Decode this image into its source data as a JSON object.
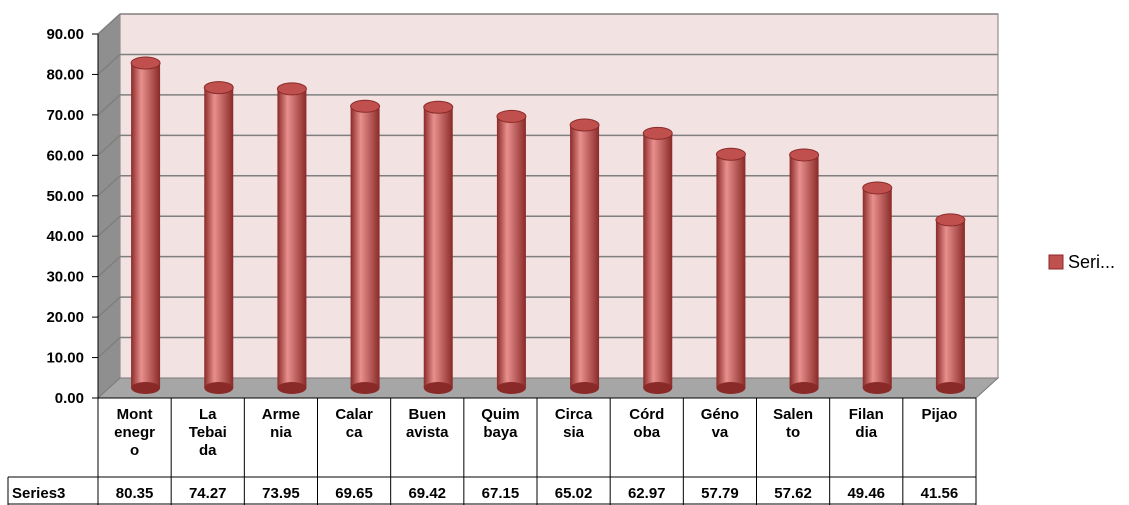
{
  "chart_data": {
    "type": "bar",
    "categories": [
      [
        "Mont",
        "enegr",
        "o"
      ],
      [
        "La",
        "Tebai",
        "da"
      ],
      [
        "Arme",
        "nia"
      ],
      [
        "Calar",
        "ca"
      ],
      [
        "Buen",
        "avista"
      ],
      [
        "Quim",
        "baya"
      ],
      [
        "Circa",
        "sia"
      ],
      [
        "Córd",
        "oba"
      ],
      [
        "Géno",
        "va"
      ],
      [
        "Salen",
        "to"
      ],
      [
        "Filan",
        "dia"
      ],
      [
        "Pijao"
      ]
    ],
    "series": [
      {
        "name": "Series3",
        "values": [
          80.35,
          74.27,
          73.95,
          69.65,
          69.42,
          67.15,
          65.02,
          62.97,
          57.79,
          57.62,
          49.46,
          41.56
        ],
        "value_labels": [
          "80.35",
          "74.27",
          "73.95",
          "69.65",
          "69.42",
          "67.15",
          "65.02",
          "62.97",
          "57.79",
          "57.62",
          "49.46",
          "41.56"
        ]
      }
    ],
    "ylim": [
      0,
      90
    ],
    "yticks": [
      "0.00",
      "10.00",
      "20.00",
      "30.00",
      "40.00",
      "50.00",
      "60.00",
      "70.00",
      "80.00",
      "90.00"
    ],
    "grid": true,
    "legend": {
      "label": "Seri...",
      "placement": "right"
    },
    "colors": {
      "bar": "#c0504d",
      "bar_highlight": "#e8908e",
      "bar_shadow": "#8a2a28",
      "back_wall": "#f2e2e2",
      "side_wall": "#8f8f8f",
      "floor": "#a6a6a6",
      "grid": "#7f7f7f"
    }
  }
}
